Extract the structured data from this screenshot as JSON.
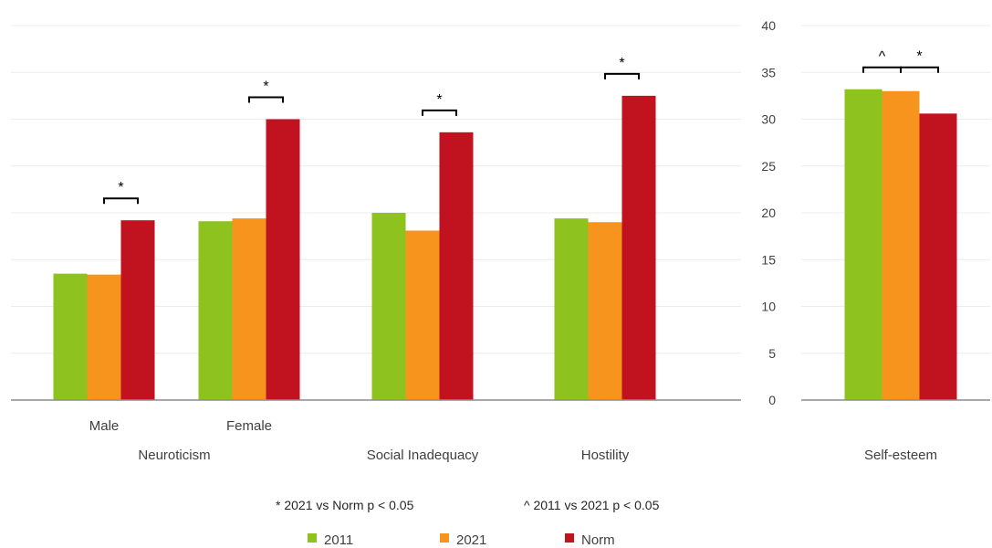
{
  "chart_data": {
    "type": "bar",
    "legend": {
      "position": "bottom",
      "entries": [
        {
          "name": "2011",
          "color": "#8DC21F"
        },
        {
          "name": "2021",
          "color": "#F7941D"
        },
        {
          "name": "Norm",
          "color": "#C1121F"
        }
      ]
    },
    "notes": {
      "star": "* 2021 vs Norm p < 0.05",
      "caret": "^ 2011 vs 2021 p < 0.05"
    },
    "panels": [
      {
        "id": "left",
        "ylim": [
          0,
          40
        ],
        "show_tick_labels": false,
        "grid": true,
        "groups": [
          {
            "label": "Male",
            "label2": "Neuroticism",
            "values": [
              13.5,
              13.4,
              19.2
            ],
            "sig": [
              {
                "type": "*",
                "from": 1,
                "to": 2
              }
            ]
          },
          {
            "label": "Female",
            "label2": "",
            "values": [
              19.1,
              19.4,
              30.0
            ],
            "sig": [
              {
                "type": "*",
                "from": 1,
                "to": 2
              }
            ]
          },
          {
            "label": "Social Inadequacy",
            "label2": "",
            "values": [
              20.0,
              18.1,
              28.6
            ],
            "sig": [
              {
                "type": "*",
                "from": 1,
                "to": 2
              }
            ]
          },
          {
            "label": "Hostility",
            "label2": "",
            "values": [
              19.4,
              19.0,
              32.5
            ],
            "sig": [
              {
                "type": "*",
                "from": 1,
                "to": 2
              }
            ]
          }
        ]
      },
      {
        "id": "right",
        "ylim": [
          0,
          40
        ],
        "yticks": [
          0,
          5,
          10,
          15,
          20,
          25,
          30,
          35,
          40
        ],
        "grid": true,
        "groups": [
          {
            "label": "Self-esteem",
            "label2": "",
            "values": [
              33.2,
              33.0,
              30.6
            ],
            "sig": [
              {
                "type": "^",
                "from": 0,
                "to": 1
              },
              {
                "type": "*",
                "from": 1,
                "to": 2
              }
            ]
          }
        ]
      }
    ]
  }
}
